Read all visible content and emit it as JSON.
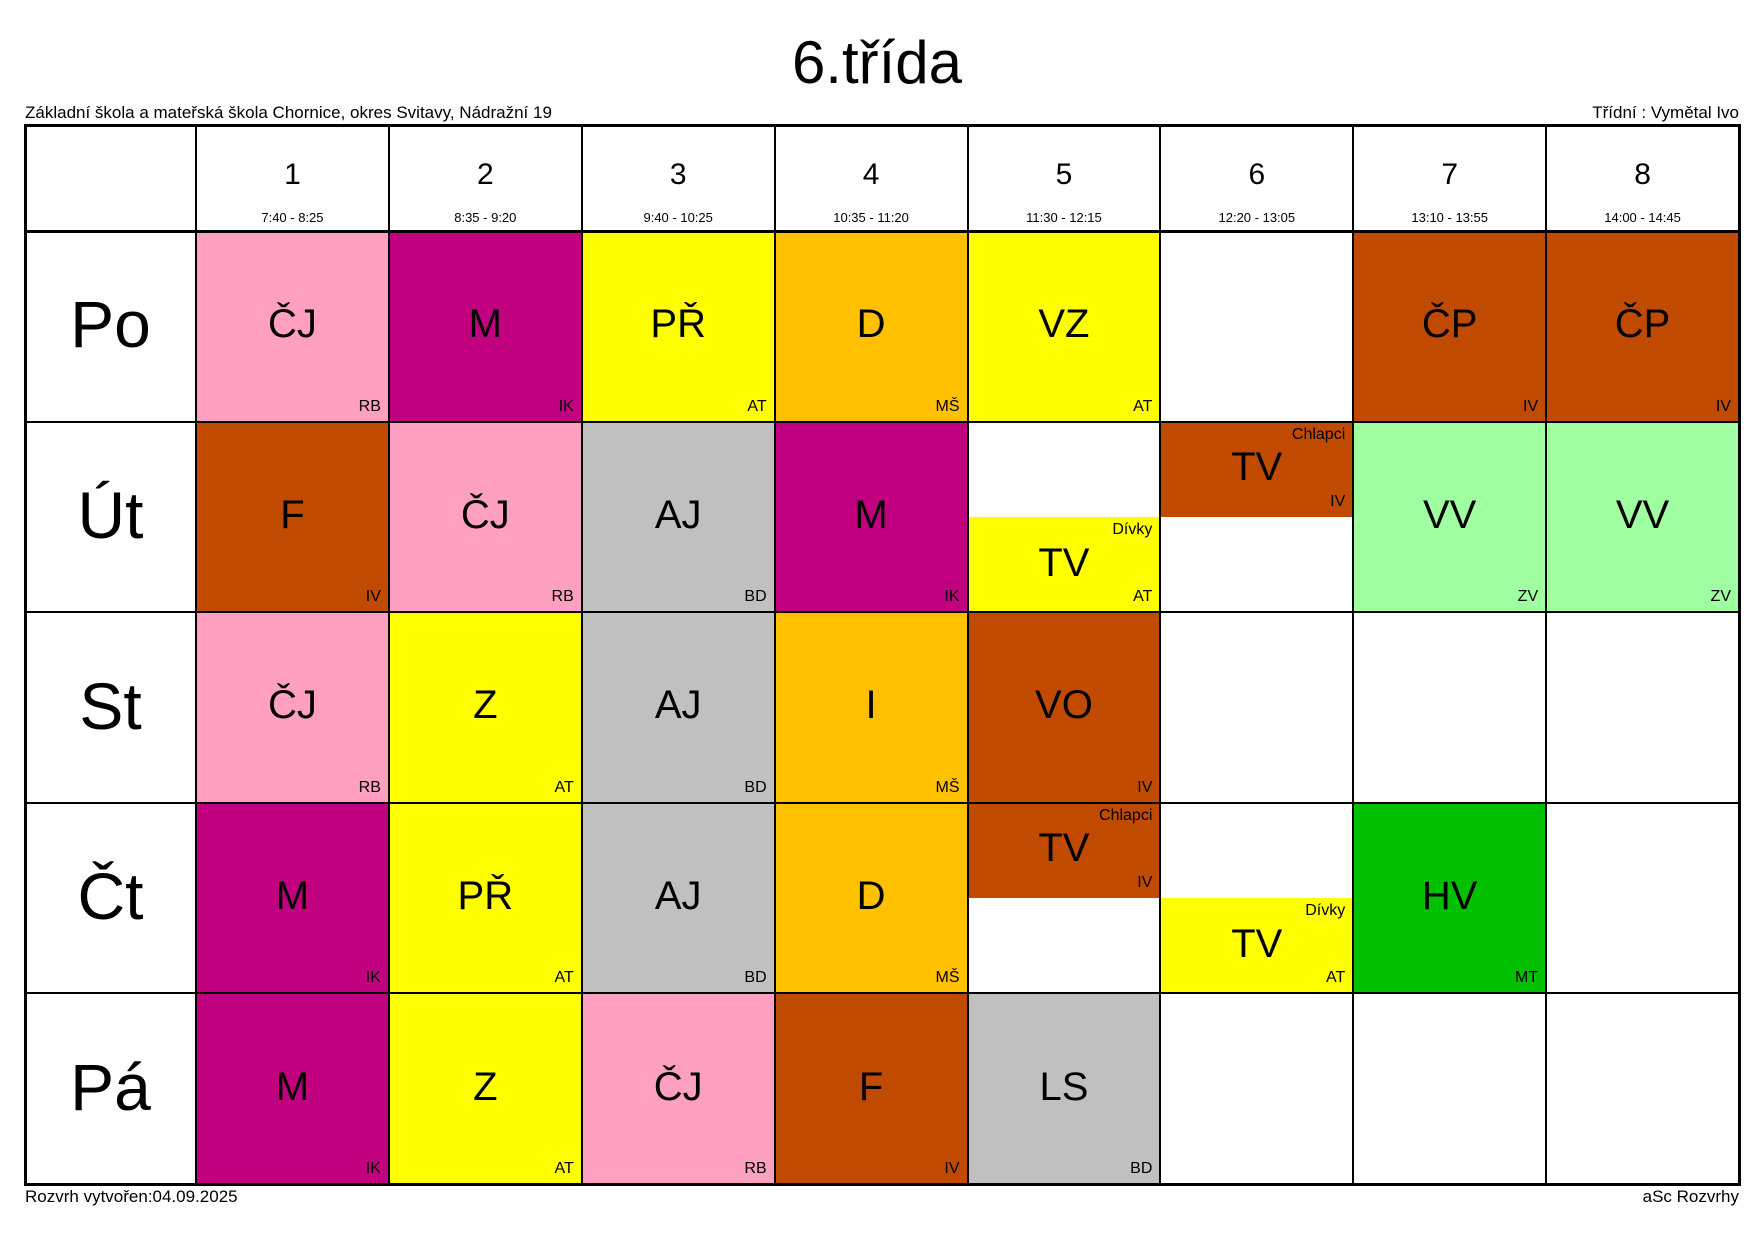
{
  "header": {
    "title": "6.třída",
    "school": "Základní škola a mateřská škola Chornice, okres Svitavy, Nádražní 19",
    "class_teacher": "Třídní : Vymětal Ivo"
  },
  "periods": [
    {
      "number": "1",
      "time": "7:40 - 8:25"
    },
    {
      "number": "2",
      "time": "8:35 - 9:20"
    },
    {
      "number": "3",
      "time": "9:40 - 10:25"
    },
    {
      "number": "4",
      "time": "10:35 - 11:20"
    },
    {
      "number": "5",
      "time": "11:30 - 12:15"
    },
    {
      "number": "6",
      "time": "12:20 - 13:05"
    },
    {
      "number": "7",
      "time": "13:10 - 13:55"
    },
    {
      "number": "8",
      "time": "14:00 - 14:45"
    }
  ],
  "days": [
    {
      "name": "Po",
      "slots": [
        {
          "subject": "ČJ",
          "teacher": "RB",
          "color": "#FFA0C0"
        },
        {
          "subject": "M",
          "teacher": "IK",
          "color": "#C0007F"
        },
        {
          "subject": "PŘ",
          "teacher": "AT",
          "color": "#FFFF00"
        },
        {
          "subject": "D",
          "teacher": "MŠ",
          "color": "#FFC000"
        },
        {
          "subject": "VZ",
          "teacher": "AT",
          "color": "#FFFF00"
        },
        null,
        {
          "subject": "ČP",
          "teacher": "IV",
          "color": "#C04A00"
        },
        {
          "subject": "ČP",
          "teacher": "IV",
          "color": "#C04A00"
        }
      ]
    },
    {
      "name": "Út",
      "slots": [
        {
          "subject": "F",
          "teacher": "IV",
          "color": "#C04A00"
        },
        {
          "subject": "ČJ",
          "teacher": "RB",
          "color": "#FFA0C0"
        },
        {
          "subject": "AJ",
          "teacher": "BD",
          "color": "#C0C0C0"
        },
        {
          "subject": "M",
          "teacher": "IK",
          "color": "#C0007F"
        },
        {
          "top": null,
          "bottom": {
            "subject": "TV",
            "group": "Dívky",
            "teacher": "AT",
            "color": "#FFFF00"
          }
        },
        {
          "top": {
            "subject": "TV",
            "group": "Chlapci",
            "teacher": "IV",
            "color": "#C04A00"
          },
          "bottom": null
        },
        {
          "subject": "VV",
          "teacher": "ZV",
          "color": "#A0FFA0"
        },
        {
          "subject": "VV",
          "teacher": "ZV",
          "color": "#A0FFA0"
        }
      ]
    },
    {
      "name": "St",
      "slots": [
        {
          "subject": "ČJ",
          "teacher": "RB",
          "color": "#FFA0C0"
        },
        {
          "subject": "Z",
          "teacher": "AT",
          "color": "#FFFF00"
        },
        {
          "subject": "AJ",
          "teacher": "BD",
          "color": "#C0C0C0"
        },
        {
          "subject": "I",
          "teacher": "MŠ",
          "color": "#FFC000"
        },
        {
          "subject": "VO",
          "teacher": "IV",
          "color": "#C04A00"
        },
        null,
        null,
        null
      ]
    },
    {
      "name": "Čt",
      "slots": [
        {
          "subject": "M",
          "teacher": "IK",
          "color": "#C0007F"
        },
        {
          "subject": "PŘ",
          "teacher": "AT",
          "color": "#FFFF00"
        },
        {
          "subject": "AJ",
          "teacher": "BD",
          "color": "#C0C0C0"
        },
        {
          "subject": "D",
          "teacher": "MŠ",
          "color": "#FFC000"
        },
        {
          "top": {
            "subject": "TV",
            "group": "Chlapci",
            "teacher": "IV",
            "color": "#C04A00"
          },
          "bottom": null
        },
        {
          "top": null,
          "bottom": {
            "subject": "TV",
            "group": "Dívky",
            "teacher": "AT",
            "color": "#FFFF00"
          }
        },
        {
          "subject": "HV",
          "teacher": "MT",
          "color": "#00C000"
        },
        null
      ]
    },
    {
      "name": "Pá",
      "slots": [
        {
          "subject": "M",
          "teacher": "IK",
          "color": "#C0007F"
        },
        {
          "subject": "Z",
          "teacher": "AT",
          "color": "#FFFF00"
        },
        {
          "subject": "ČJ",
          "teacher": "RB",
          "color": "#FFA0C0"
        },
        {
          "subject": "F",
          "teacher": "IV",
          "color": "#C04A00"
        },
        {
          "subject": "LS",
          "teacher": "BD",
          "color": "#C0C0C0"
        },
        null,
        null,
        null
      ]
    }
  ],
  "footer": {
    "created": "Rozvrh vytvořen:04.09.2025",
    "software": "aSc Rozvrhy"
  }
}
